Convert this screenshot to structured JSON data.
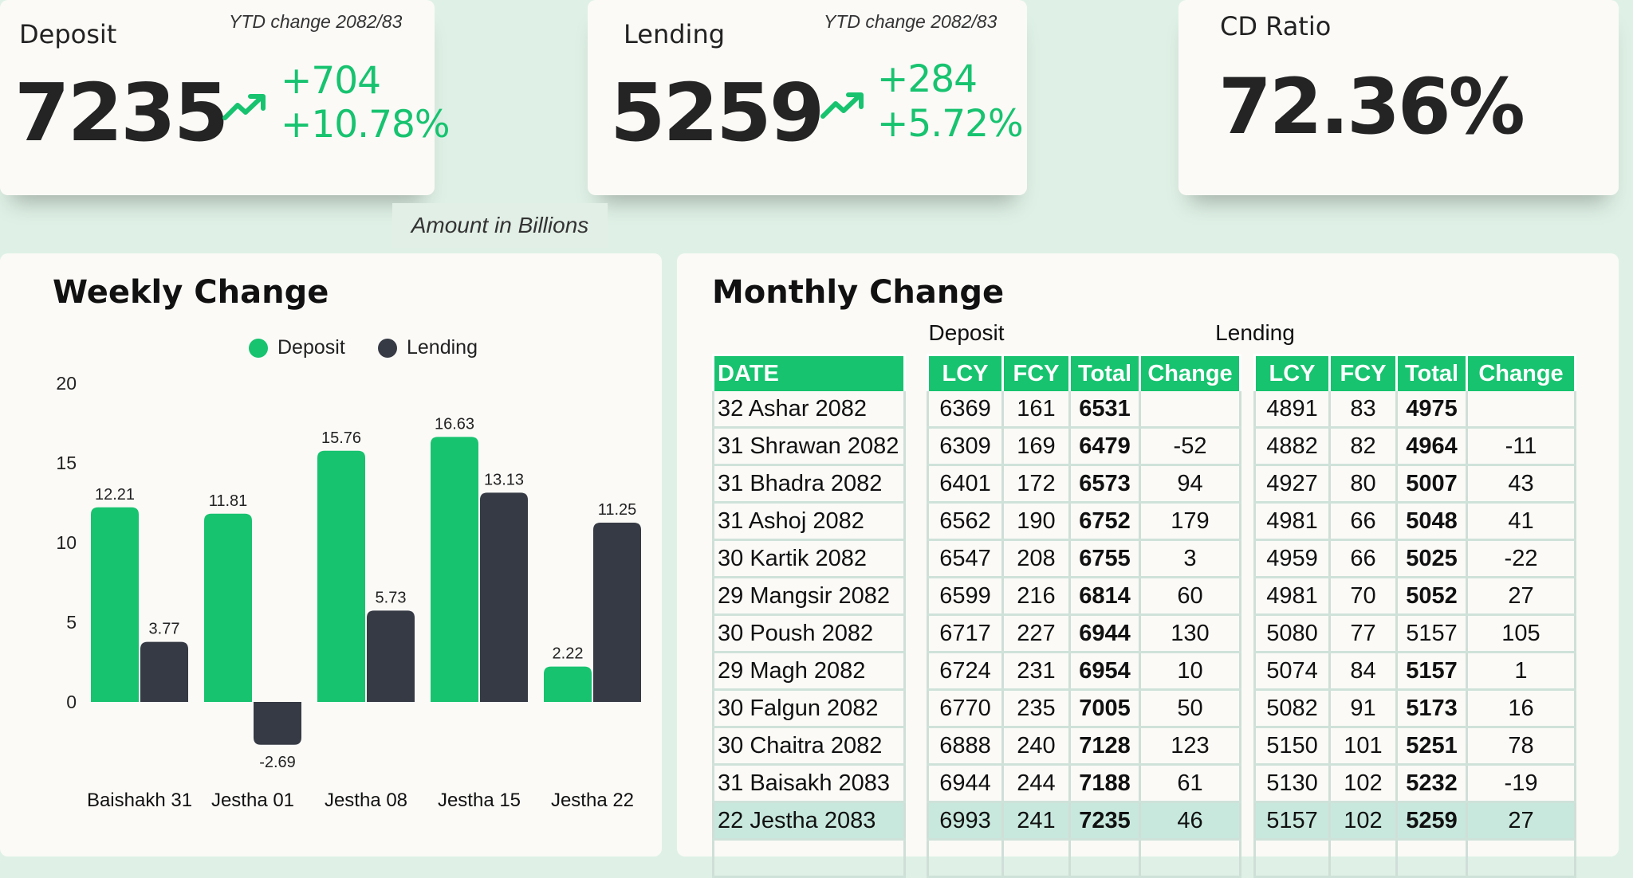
{
  "kpis": {
    "deposit": {
      "title": "Deposit",
      "ytd": "YTD change 2082/83",
      "value": "7235",
      "change_abs": "+704",
      "change_pct": "+10.78%"
    },
    "lending": {
      "title": "Lending",
      "ytd": "YTD change 2082/83",
      "value": "5259",
      "change_abs": "+284",
      "change_pct": "+5.72%"
    },
    "cd_ratio": {
      "title": "CD Ratio",
      "value": "72.36%"
    }
  },
  "note": "Amount in Billions",
  "colors": {
    "accent": "#17c36f",
    "dark": "#363a44",
    "highlight": "#c8e8de"
  },
  "weekly": {
    "title": "Weekly Change"
  },
  "chart_data": {
    "type": "bar",
    "title": "Weekly Change",
    "categories": [
      "Baishakh 31",
      "Jestha 01",
      "Jestha 08",
      "Jestha 15",
      "Jestha 22"
    ],
    "series": [
      {
        "name": "Deposit",
        "values": [
          12.21,
          11.81,
          15.76,
          16.63,
          2.22
        ],
        "color": "#17c36f"
      },
      {
        "name": "Lending",
        "values": [
          3.77,
          -2.69,
          5.73,
          13.13,
          11.25
        ],
        "color": "#363a44"
      }
    ],
    "y_ticks": [
      0,
      5,
      10,
      15,
      20
    ],
    "ylim": [
      -3,
      20
    ],
    "legend": "top"
  },
  "monthly": {
    "title": "Monthly Change",
    "deposit_label": "Deposit",
    "lending_label": "Lending",
    "date_header": "DATE",
    "headers": [
      "LCY",
      "FCY",
      "Total",
      "Change"
    ],
    "rows": [
      {
        "date": "32 Ashar 2082",
        "dep": [
          "6369",
          "161",
          "6531",
          ""
        ],
        "len": [
          "4891",
          "83",
          "4975",
          ""
        ]
      },
      {
        "date": "31 Shrawan 2082",
        "dep": [
          "6309",
          "169",
          "6479",
          "-52"
        ],
        "len": [
          "4882",
          "82",
          "4964",
          "-11"
        ]
      },
      {
        "date": "31 Bhadra 2082",
        "dep": [
          "6401",
          "172",
          "6573",
          "94"
        ],
        "len": [
          "4927",
          "80",
          "5007",
          "43"
        ]
      },
      {
        "date": "31 Ashoj 2082",
        "dep": [
          "6562",
          "190",
          "6752",
          "179"
        ],
        "len": [
          "4981",
          "66",
          "5048",
          "41"
        ]
      },
      {
        "date": "30 Kartik 2082",
        "dep": [
          "6547",
          "208",
          "6755",
          "3"
        ],
        "len": [
          "4959",
          "66",
          "5025",
          "-22"
        ]
      },
      {
        "date": "29 Mangsir 2082",
        "dep": [
          "6599",
          "216",
          "6814",
          "60"
        ],
        "len": [
          "4981",
          "70",
          "5052",
          "27"
        ]
      },
      {
        "date": "30 Poush 2082",
        "dep": [
          "6717",
          "227",
          "6944",
          "130"
        ],
        "len": [
          "5080",
          "77",
          "5157",
          "105"
        ]
      },
      {
        "date": "29 Magh 2082",
        "dep": [
          "6724",
          "231",
          "6954",
          "10"
        ],
        "len": [
          "5074",
          "84",
          "5157",
          "1"
        ]
      },
      {
        "date": "30 Falgun 2082",
        "dep": [
          "6770",
          "235",
          "7005",
          "50"
        ],
        "len": [
          "5082",
          "91",
          "5173",
          "16"
        ]
      },
      {
        "date": "30 Chaitra 2082",
        "dep": [
          "6888",
          "240",
          "7128",
          "123"
        ],
        "len": [
          "5150",
          "101",
          "5251",
          "78"
        ]
      },
      {
        "date": "31 Baisakh 2083",
        "dep": [
          "6944",
          "244",
          "7188",
          "61"
        ],
        "len": [
          "5130",
          "102",
          "5232",
          "-19"
        ]
      },
      {
        "date": "22 Jestha 2083",
        "dep": [
          "6993",
          "241",
          "7235",
          "46"
        ],
        "len": [
          "5157",
          "102",
          "5259",
          "27"
        ]
      }
    ]
  }
}
